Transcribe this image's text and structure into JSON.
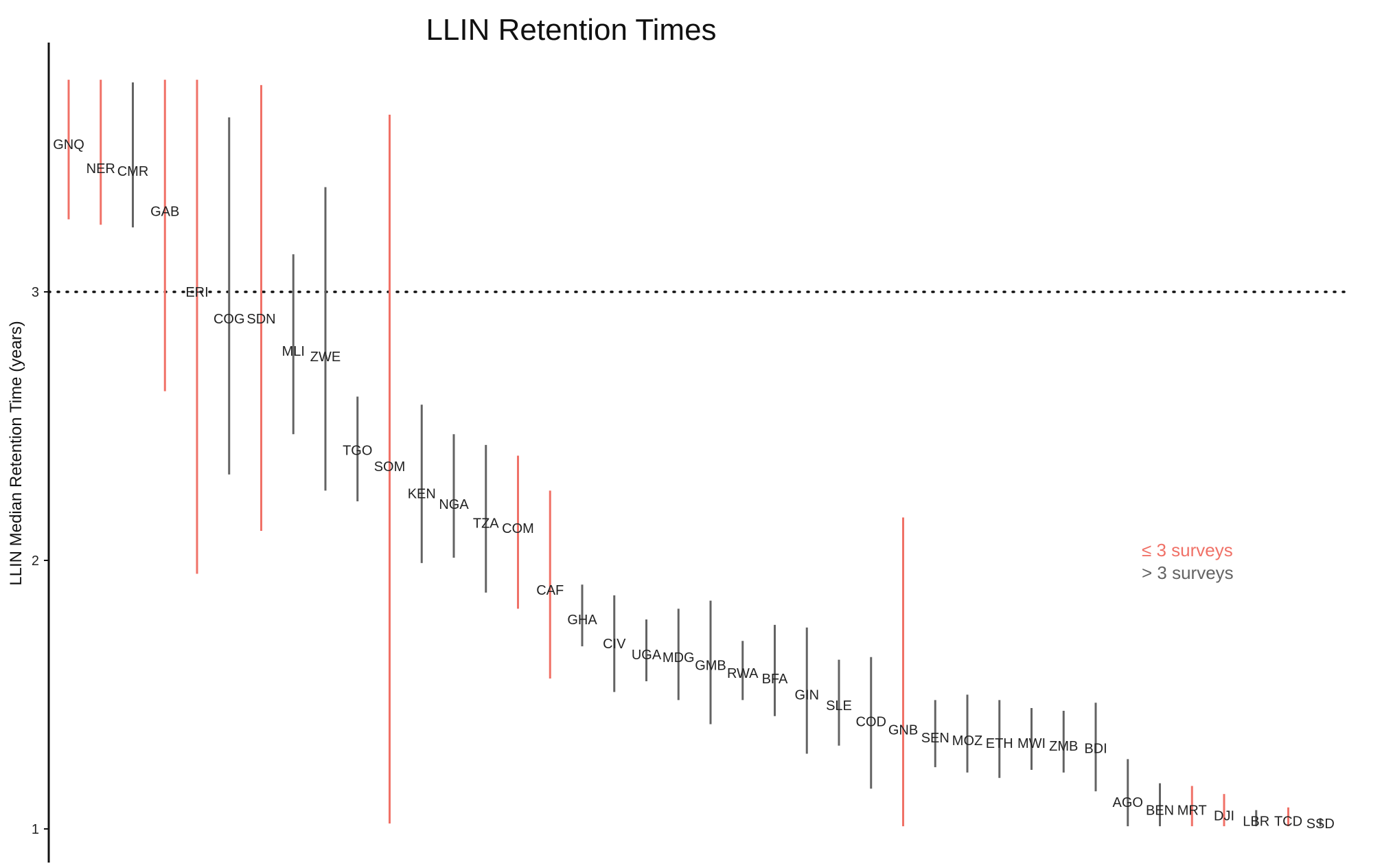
{
  "chart_data": {
    "type": "errorbar",
    "title": "LLIN Retention Times",
    "ylabel": "LLIN Median Retention Time (years)",
    "xlabel": "",
    "ylim": [
      0.87,
      3.95
    ],
    "yticks": [
      1,
      2,
      3
    ],
    "reference_line": {
      "y": 3,
      "style": "dotted"
    },
    "grid": false,
    "colors": {
      "le3": "#f07167",
      "gt3": "#636363"
    },
    "legend": {
      "placement": "right",
      "entries": [
        {
          "key": "le3",
          "label": "≤ 3 surveys"
        },
        {
          "key": "gt3",
          "label": "> 3 surveys"
        }
      ]
    },
    "points": [
      {
        "label": "GNQ",
        "group": "le3",
        "y": 3.55,
        "lo": 3.27,
        "hi": 3.79
      },
      {
        "label": "NER",
        "group": "le3",
        "y": 3.46,
        "lo": 3.25,
        "hi": 3.79
      },
      {
        "label": "CMR",
        "group": "gt3",
        "y": 3.45,
        "lo": 3.24,
        "hi": 3.78
      },
      {
        "label": "GAB",
        "group": "le3",
        "y": 3.3,
        "lo": 2.63,
        "hi": 3.79
      },
      {
        "label": "ERI",
        "group": "le3",
        "y": 3.0,
        "lo": 1.95,
        "hi": 3.79
      },
      {
        "label": "COG",
        "group": "gt3",
        "y": 2.9,
        "lo": 2.32,
        "hi": 3.65
      },
      {
        "label": "SDN",
        "group": "le3",
        "y": 2.9,
        "lo": 2.11,
        "hi": 3.77
      },
      {
        "label": "MLI",
        "group": "gt3",
        "y": 2.78,
        "lo": 2.47,
        "hi": 3.14
      },
      {
        "label": "ZWE",
        "group": "gt3",
        "y": 2.76,
        "lo": 2.26,
        "hi": 3.39
      },
      {
        "label": "TGO",
        "group": "gt3",
        "y": 2.41,
        "lo": 2.22,
        "hi": 2.61
      },
      {
        "label": "SOM",
        "group": "le3",
        "y": 2.35,
        "lo": 1.02,
        "hi": 3.66
      },
      {
        "label": "KEN",
        "group": "gt3",
        "y": 2.25,
        "lo": 1.99,
        "hi": 2.58
      },
      {
        "label": "NGA",
        "group": "gt3",
        "y": 2.21,
        "lo": 2.01,
        "hi": 2.47
      },
      {
        "label": "TZA",
        "group": "gt3",
        "y": 2.14,
        "lo": 1.88,
        "hi": 2.43
      },
      {
        "label": "COM",
        "group": "le3",
        "y": 2.12,
        "lo": 1.82,
        "hi": 2.39
      },
      {
        "label": "CAF",
        "group": "le3",
        "y": 1.89,
        "lo": 1.56,
        "hi": 2.26
      },
      {
        "label": "GHA",
        "group": "gt3",
        "y": 1.78,
        "lo": 1.68,
        "hi": 1.91
      },
      {
        "label": "CIV",
        "group": "gt3",
        "y": 1.69,
        "lo": 1.51,
        "hi": 1.87
      },
      {
        "label": "UGA",
        "group": "gt3",
        "y": 1.65,
        "lo": 1.55,
        "hi": 1.78
      },
      {
        "label": "MDG",
        "group": "gt3",
        "y": 1.64,
        "lo": 1.48,
        "hi": 1.82
      },
      {
        "label": "GMB",
        "group": "gt3",
        "y": 1.61,
        "lo": 1.39,
        "hi": 1.85
      },
      {
        "label": "RWA",
        "group": "gt3",
        "y": 1.58,
        "lo": 1.48,
        "hi": 1.7
      },
      {
        "label": "BFA",
        "group": "gt3",
        "y": 1.56,
        "lo": 1.42,
        "hi": 1.76
      },
      {
        "label": "GIN",
        "group": "gt3",
        "y": 1.5,
        "lo": 1.28,
        "hi": 1.75
      },
      {
        "label": "SLE",
        "group": "gt3",
        "y": 1.46,
        "lo": 1.31,
        "hi": 1.63
      },
      {
        "label": "COD",
        "group": "gt3",
        "y": 1.4,
        "lo": 1.15,
        "hi": 1.64
      },
      {
        "label": "GNB",
        "group": "le3",
        "y": 1.37,
        "lo": 1.01,
        "hi": 2.16
      },
      {
        "label": "SEN",
        "group": "gt3",
        "y": 1.34,
        "lo": 1.23,
        "hi": 1.48
      },
      {
        "label": "MOZ",
        "group": "gt3",
        "y": 1.33,
        "lo": 1.21,
        "hi": 1.5
      },
      {
        "label": "ETH",
        "group": "gt3",
        "y": 1.32,
        "lo": 1.19,
        "hi": 1.48
      },
      {
        "label": "MWI",
        "group": "gt3",
        "y": 1.32,
        "lo": 1.22,
        "hi": 1.45
      },
      {
        "label": "ZMB",
        "group": "gt3",
        "y": 1.31,
        "lo": 1.21,
        "hi": 1.44
      },
      {
        "label": "BDI",
        "group": "gt3",
        "y": 1.3,
        "lo": 1.14,
        "hi": 1.47
      },
      {
        "label": "AGO",
        "group": "gt3",
        "y": 1.1,
        "lo": 1.01,
        "hi": 1.26
      },
      {
        "label": "BEN",
        "group": "gt3",
        "y": 1.07,
        "lo": 1.01,
        "hi": 1.17
      },
      {
        "label": "MRT",
        "group": "le3",
        "y": 1.07,
        "lo": 1.01,
        "hi": 1.16
      },
      {
        "label": "DJI",
        "group": "le3",
        "y": 1.05,
        "lo": 1.01,
        "hi": 1.13
      },
      {
        "label": "LBR",
        "group": "gt3",
        "y": 1.03,
        "lo": 1.01,
        "hi": 1.07
      },
      {
        "label": "TCD",
        "group": "le3",
        "y": 1.03,
        "lo": 1.01,
        "hi": 1.08
      },
      {
        "label": "SSD",
        "group": "gt3",
        "y": 1.02,
        "lo": 1.01,
        "hi": 1.04
      }
    ]
  }
}
